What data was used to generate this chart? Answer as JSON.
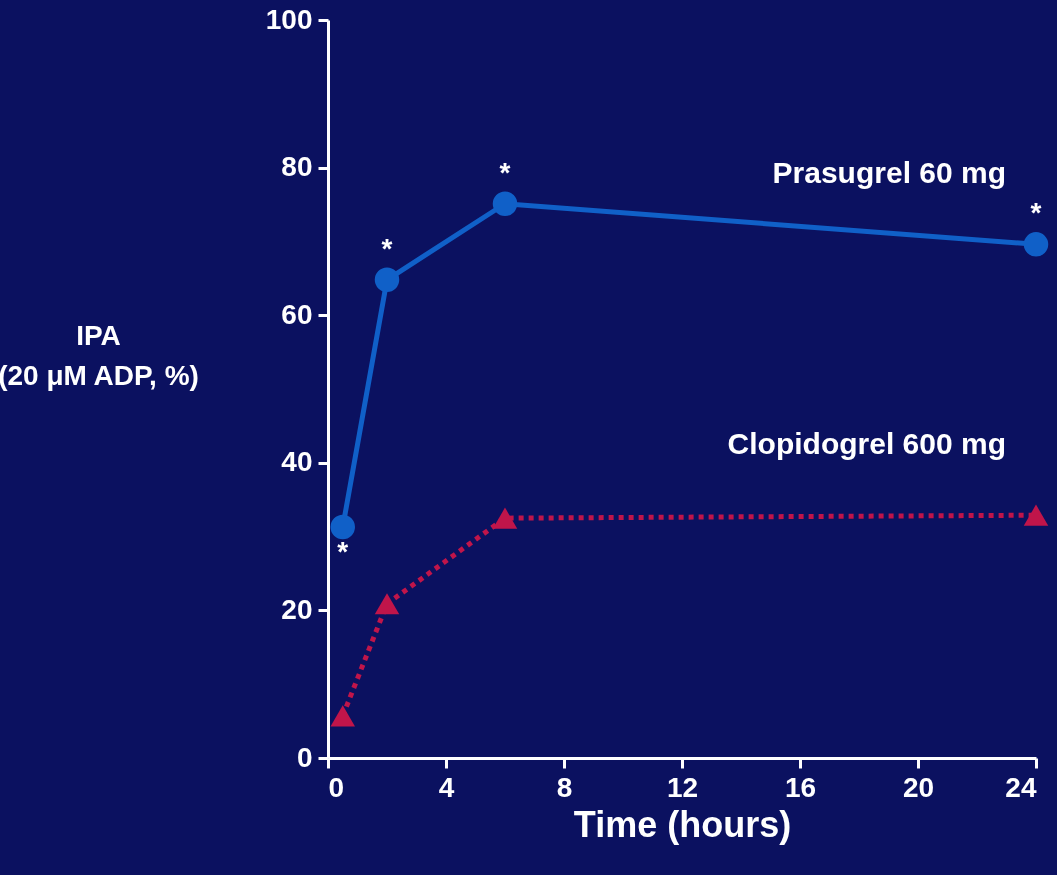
{
  "chart_data": {
    "type": "line",
    "xlabel": "Time (hours)",
    "ylabel": "IPA\n(20 μM ADP, %)",
    "xlim": [
      0,
      24
    ],
    "xticks": [
      0,
      4,
      8,
      12,
      16,
      20,
      24
    ],
    "ylim": [
      0,
      100
    ],
    "yticks": [
      0,
      20,
      40,
      60,
      80,
      100
    ],
    "grid": false,
    "legend": false,
    "series": [
      {
        "name": "Prasugrel 60 mg",
        "color": "#1060c8",
        "marker": "circle",
        "line_style": "solid",
        "x": [
          0.5,
          2,
          6,
          24
        ],
        "values": [
          31.3,
          64.8,
          75.1,
          69.6
        ]
      },
      {
        "name": "Clopidogrel 600 mg",
        "color": "#c0154a",
        "marker": "triangle",
        "line_style": "dotted",
        "x": [
          0.5,
          2,
          6,
          24
        ],
        "values": [
          5.7,
          20.9,
          32.5,
          32.9
        ]
      }
    ],
    "annotations": [
      {
        "text": "*",
        "x": 0.5,
        "y": 31.3
      },
      {
        "text": "*",
        "x": 2,
        "y": 64.8
      },
      {
        "text": "*",
        "x": 6,
        "y": 75.1
      },
      {
        "text": "*",
        "x": 24,
        "y": 69.6
      }
    ]
  }
}
